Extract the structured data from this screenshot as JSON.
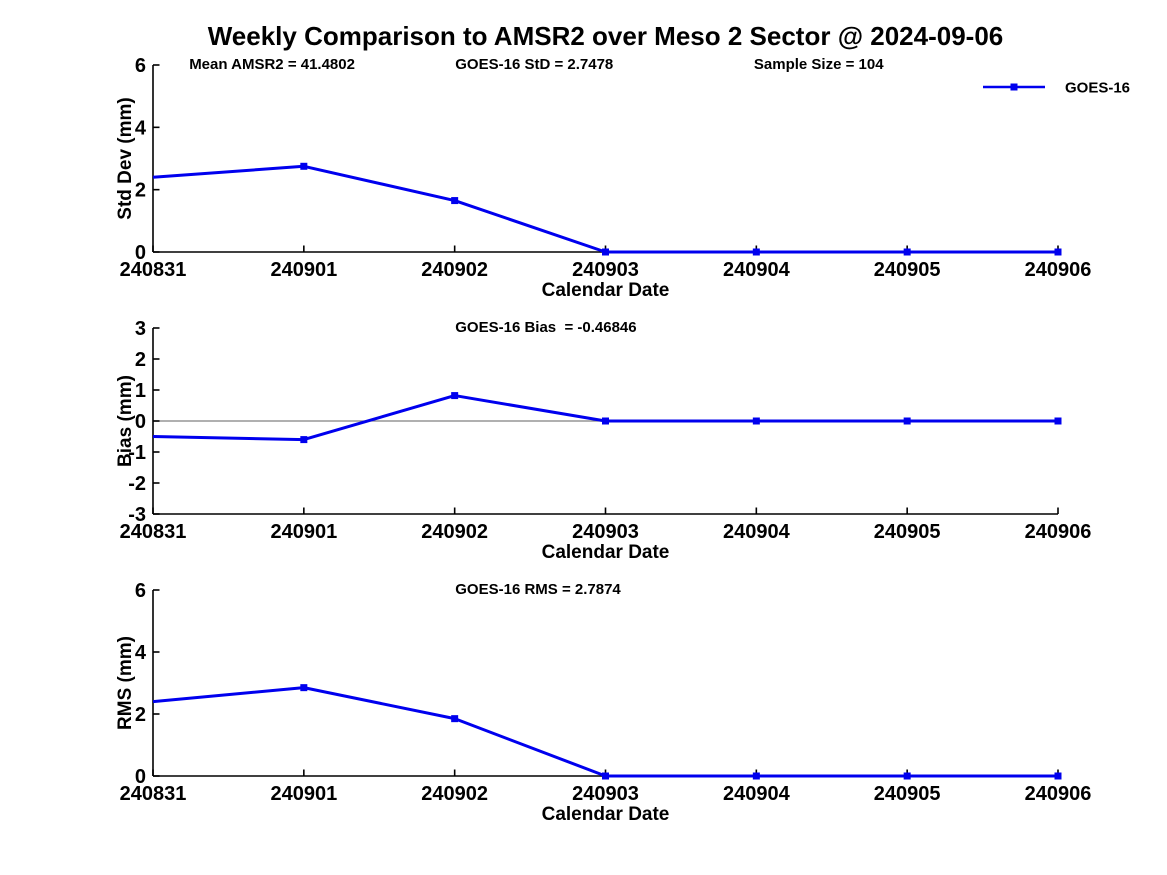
{
  "title": "Weekly Comparison to AMSR2 over Meso 2 Sector @ 2024-09-06",
  "colors": {
    "line": "#0000EE",
    "zero_line": "#808080",
    "axis": "#000000",
    "background": "#FFFFFF"
  },
  "legend": {
    "label": "GOES-16",
    "position": "top-right",
    "box": false
  },
  "chart_data": [
    {
      "id": "stddev",
      "type": "line",
      "ylabel": "Std Dev (mm)",
      "xlabel": "Calendar Date",
      "categories": [
        "240831",
        "240901",
        "240902",
        "240903",
        "240904",
        "240905",
        "240906"
      ],
      "series": [
        {
          "name": "GOES-16",
          "values": [
            2.4,
            2.75,
            1.65,
            0,
            0,
            0,
            0
          ]
        }
      ],
      "ylim": [
        0,
        6
      ],
      "yticks": [
        0,
        2,
        4,
        6
      ],
      "zero_line": false,
      "show_legend": true,
      "marker_skip_first": true,
      "annotations": [
        {
          "text": "Mean AMSR2 = 41.4802",
          "fx": 0.04
        },
        {
          "text": "GOES-16 StD = 2.7478",
          "fx": 0.334
        },
        {
          "text": "Sample Size = 104",
          "fx": 0.664
        }
      ]
    },
    {
      "id": "bias",
      "type": "line",
      "ylabel": "Bias (mm)",
      "xlabel": "Calendar Date",
      "categories": [
        "240831",
        "240901",
        "240902",
        "240903",
        "240904",
        "240905",
        "240906"
      ],
      "series": [
        {
          "name": "GOES-16",
          "values": [
            -0.5,
            -0.6,
            0.82,
            0,
            0,
            0,
            0
          ]
        }
      ],
      "ylim": [
        -3,
        3
      ],
      "yticks": [
        -3,
        -2,
        -1,
        0,
        1,
        2,
        3
      ],
      "zero_line": true,
      "show_legend": false,
      "marker_skip_first": true,
      "annotations": [
        {
          "text": "GOES-16 Bias  = -0.46846",
          "fx": 0.334
        }
      ]
    },
    {
      "id": "rms",
      "type": "line",
      "ylabel": "RMS (mm)",
      "xlabel": "Calendar Date",
      "categories": [
        "240831",
        "240901",
        "240902",
        "240903",
        "240904",
        "240905",
        "240906"
      ],
      "series": [
        {
          "name": "GOES-16",
          "values": [
            2.4,
            2.85,
            1.85,
            0,
            0,
            0,
            0
          ]
        }
      ],
      "ylim": [
        0,
        6
      ],
      "yticks": [
        0,
        2,
        4,
        6
      ],
      "zero_line": false,
      "show_legend": false,
      "marker_skip_first": true,
      "annotations": [
        {
          "text": "GOES-16 RMS = 2.7874",
          "fx": 0.334
        }
      ]
    }
  ]
}
